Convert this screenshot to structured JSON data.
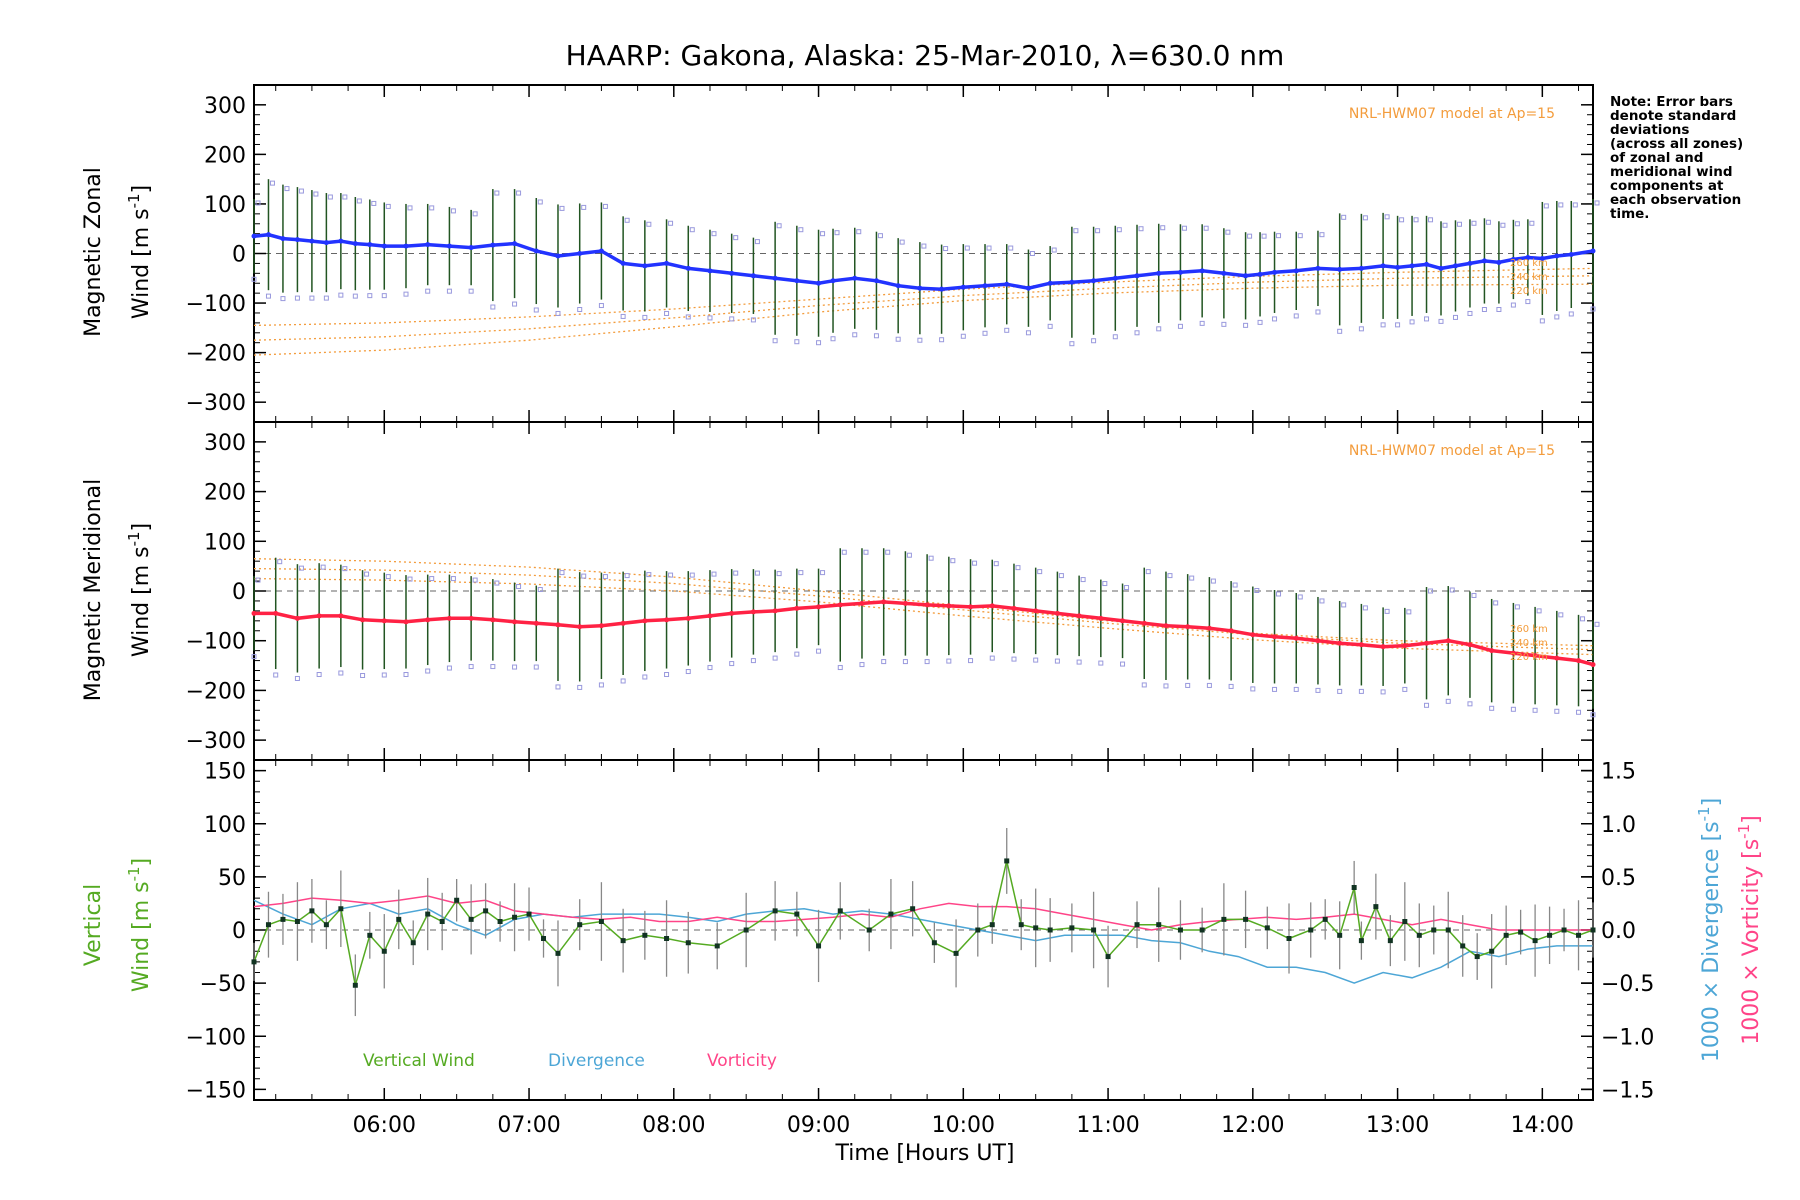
{
  "title": "HAARP: Gakona,  Alaska: 25-Mar-2010, λ=630.0 nm",
  "note_lines": [
    "Note: Error bars",
    "denote standard",
    "deviations",
    "(across all zones)",
    "of zonal and",
    "meridional wind",
    "components at",
    "each observation",
    "time."
  ],
  "xlabel": "Time [Hours UT]",
  "model_label": "NRL-HWM07 model at Ap=15",
  "altitude_labels": [
    "260 km",
    "240 km",
    "220 km"
  ],
  "legend": {
    "vertical": "Vertical Wind",
    "divergence": "Divergence",
    "vorticity": "Vorticity"
  },
  "colors": {
    "zonal": "#2233ff",
    "meridional": "#ff2244",
    "vertical": "#55aa22",
    "divergence": "#4da6d6",
    "vorticity": "#ff4488",
    "model": "#f39c3c",
    "scatter": "#9999dd",
    "errorbar": "#225522"
  },
  "chart_data": [
    {
      "type": "line",
      "panel": "zonal",
      "ylabel_line1": "Magnetic Zonal",
      "ylabel_line2": "Wind [m s",
      "ylabel_sup": "-1",
      "ylabel_close": "]",
      "xlim": [
        5.1,
        14.35
      ],
      "ylim": [
        -340,
        340
      ],
      "yticks": [
        -300,
        -200,
        -100,
        0,
        100,
        200,
        300
      ],
      "xticks": [
        6,
        7,
        8,
        9,
        10,
        11,
        12,
        13,
        14
      ],
      "xtick_labels": [
        "06:00",
        "07:00",
        "08:00",
        "09:00",
        "10:00",
        "11:00",
        "12:00",
        "13:00",
        "14:00"
      ],
      "series": [
        {
          "name": "zonal",
          "x": [
            5.1,
            5.2,
            5.3,
            5.4,
            5.5,
            5.6,
            5.7,
            5.8,
            5.9,
            6.0,
            6.15,
            6.3,
            6.45,
            6.6,
            6.75,
            6.9,
            7.05,
            7.2,
            7.35,
            7.5,
            7.65,
            7.8,
            7.95,
            8.1,
            8.25,
            8.4,
            8.55,
            8.7,
            8.85,
            9.0,
            9.1,
            9.25,
            9.4,
            9.55,
            9.7,
            9.85,
            10.0,
            10.15,
            10.3,
            10.45,
            10.6,
            10.75,
            10.9,
            11.05,
            11.2,
            11.35,
            11.5,
            11.65,
            11.8,
            11.95,
            12.05,
            12.15,
            12.3,
            12.45,
            12.6,
            12.75,
            12.9,
            13.0,
            13.1,
            13.2,
            13.3,
            13.4,
            13.5,
            13.6,
            13.7,
            13.8,
            13.9,
            14.0,
            14.1,
            14.2,
            14.35
          ],
          "values": [
            35,
            38,
            30,
            28,
            25,
            22,
            25,
            20,
            18,
            15,
            15,
            18,
            15,
            12,
            17,
            20,
            5,
            -5,
            0,
            5,
            -20,
            -25,
            -20,
            -30,
            -35,
            -40,
            -45,
            -50,
            -55,
            -60,
            -55,
            -50,
            -55,
            -65,
            -70,
            -72,
            -68,
            -65,
            -62,
            -70,
            -60,
            -58,
            -55,
            -50,
            -45,
            -40,
            -38,
            -35,
            -40,
            -45,
            -42,
            -38,
            -35,
            -30,
            -32,
            -30,
            -25,
            -28,
            -25,
            -22,
            -30,
            -25,
            -20,
            -15,
            -18,
            -12,
            -8,
            -10,
            -5,
            -2,
            5
          ]
        },
        {
          "name": "model 260 km",
          "x": [
            5.1,
            6.0,
            7.0,
            8.0,
            9.0,
            10.0,
            11.0,
            12.0,
            13.0,
            14.35
          ],
          "values": [
            -145,
            -140,
            -128,
            -112,
            -92,
            -72,
            -58,
            -46,
            -38,
            -30
          ]
        },
        {
          "name": "model 240 km",
          "x": [
            5.1,
            6.0,
            7.0,
            8.0,
            9.0,
            10.0,
            11.0,
            12.0,
            13.0,
            14.35
          ],
          "values": [
            -175,
            -168,
            -152,
            -130,
            -105,
            -85,
            -70,
            -58,
            -50,
            -45
          ]
        },
        {
          "name": "model 220 km",
          "x": [
            5.1,
            6.0,
            7.0,
            8.0,
            9.0,
            10.0,
            11.0,
            12.0,
            13.0,
            14.35
          ],
          "values": [
            -205,
            -195,
            -175,
            -148,
            -118,
            -95,
            -80,
            -70,
            -64,
            -62
          ]
        }
      ]
    },
    {
      "type": "line",
      "panel": "meridional",
      "ylabel_line1": "Magnetic Meridional",
      "ylabel_line2": "Wind [m s",
      "ylabel_sup": "-1",
      "ylabel_close": "]",
      "xlim": [
        5.1,
        14.35
      ],
      "ylim": [
        -340,
        340
      ],
      "yticks": [
        -300,
        -200,
        -100,
        0,
        100,
        200,
        300
      ],
      "series": [
        {
          "name": "meridional",
          "x": [
            5.1,
            5.25,
            5.4,
            5.55,
            5.7,
            5.85,
            6.0,
            6.15,
            6.3,
            6.45,
            6.6,
            6.75,
            6.9,
            7.05,
            7.2,
            7.35,
            7.5,
            7.65,
            7.8,
            7.95,
            8.1,
            8.25,
            8.4,
            8.55,
            8.7,
            8.85,
            9.0,
            9.15,
            9.3,
            9.45,
            9.6,
            9.75,
            9.9,
            10.05,
            10.2,
            10.35,
            10.5,
            10.65,
            10.8,
            10.95,
            11.1,
            11.25,
            11.4,
            11.55,
            11.7,
            11.85,
            12.0,
            12.15,
            12.3,
            12.45,
            12.6,
            12.75,
            12.9,
            13.05,
            13.2,
            13.35,
            13.5,
            13.65,
            13.8,
            13.95,
            14.1,
            14.25,
            14.35
          ],
          "values": [
            -45,
            -45,
            -55,
            -50,
            -50,
            -58,
            -60,
            -62,
            -58,
            -55,
            -55,
            -58,
            -62,
            -65,
            -68,
            -72,
            -70,
            -65,
            -60,
            -58,
            -55,
            -50,
            -45,
            -42,
            -40,
            -35,
            -32,
            -28,
            -25,
            -22,
            -25,
            -28,
            -30,
            -32,
            -30,
            -35,
            -40,
            -45,
            -50,
            -55,
            -60,
            -65,
            -70,
            -72,
            -75,
            -80,
            -88,
            -92,
            -95,
            -100,
            -105,
            -108,
            -112,
            -110,
            -105,
            -100,
            -108,
            -120,
            -125,
            -130,
            -135,
            -140,
            -148
          ]
        },
        {
          "name": "model 260 km",
          "x": [
            5.1,
            6.0,
            7.0,
            8.0,
            9.0,
            10.0,
            11.0,
            12.0,
            13.0,
            14.35
          ],
          "values": [
            65,
            60,
            48,
            28,
            0,
            -30,
            -60,
            -85,
            -100,
            -110
          ]
        },
        {
          "name": "model 240 km",
          "x": [
            5.1,
            6.0,
            7.0,
            8.0,
            9.0,
            10.0,
            11.0,
            12.0,
            13.0,
            14.35
          ],
          "values": [
            45,
            42,
            32,
            15,
            -10,
            -38,
            -65,
            -88,
            -105,
            -118
          ]
        },
        {
          "name": "model 220 km",
          "x": [
            5.1,
            6.0,
            7.0,
            8.0,
            9.0,
            10.0,
            11.0,
            12.0,
            13.0,
            14.35
          ],
          "values": [
            25,
            22,
            14,
            0,
            -22,
            -50,
            -75,
            -98,
            -115,
            -128
          ]
        }
      ]
    },
    {
      "type": "line",
      "panel": "vertical",
      "ylabel_green_1": "Vertical",
      "ylabel_green_2": "Wind [m s",
      "ylabel_sup": "-1",
      "ylabel_close": "]",
      "ylabel_right_div": "1000 × Divergence [s",
      "ylabel_right_vor": "1000 × Vorticity [s",
      "xlim": [
        5.1,
        14.35
      ],
      "ylim": [
        -160,
        160
      ],
      "yticks": [
        -150,
        -100,
        -50,
        0,
        50,
        100,
        150
      ],
      "y2lim": [
        -1.6,
        1.6
      ],
      "y2ticks": [
        -1.5,
        -1.0,
        -0.5,
        0.0,
        0.5,
        1.0,
        1.5
      ],
      "y2tick_labels": [
        "−1.5",
        "−1.0",
        "−0.5",
        "0.0",
        "0.5",
        "1.0",
        "1.5"
      ],
      "series": [
        {
          "name": "Vertical Wind",
          "x": [
            5.1,
            5.2,
            5.3,
            5.4,
            5.5,
            5.6,
            5.7,
            5.8,
            5.9,
            6.0,
            6.1,
            6.2,
            6.3,
            6.4,
            6.5,
            6.6,
            6.7,
            6.8,
            6.9,
            7.0,
            7.1,
            7.2,
            7.35,
            7.5,
            7.65,
            7.8,
            7.95,
            8.1,
            8.3,
            8.5,
            8.7,
            8.85,
            9.0,
            9.15,
            9.35,
            9.5,
            9.65,
            9.8,
            9.95,
            10.1,
            10.2,
            10.3,
            10.4,
            10.5,
            10.6,
            10.75,
            10.9,
            11.0,
            11.2,
            11.35,
            11.5,
            11.65,
            11.8,
            11.95,
            12.1,
            12.25,
            12.4,
            12.5,
            12.6,
            12.7,
            12.75,
            12.85,
            12.95,
            13.05,
            13.15,
            13.25,
            13.35,
            13.45,
            13.55,
            13.65,
            13.75,
            13.85,
            13.95,
            14.05,
            14.15,
            14.25,
            14.35
          ],
          "values": [
            -30,
            5,
            10,
            8,
            18,
            5,
            20,
            -52,
            -5,
            -20,
            10,
            -12,
            15,
            8,
            28,
            10,
            18,
            8,
            12,
            15,
            -8,
            -22,
            5,
            8,
            -10,
            -5,
            -8,
            -12,
            -15,
            0,
            18,
            15,
            -15,
            18,
            0,
            15,
            20,
            -12,
            -22,
            0,
            5,
            65,
            5,
            2,
            0,
            2,
            0,
            -25,
            5,
            5,
            0,
            0,
            10,
            10,
            2,
            -8,
            0,
            10,
            -5,
            40,
            -10,
            22,
            -10,
            8,
            -5,
            0,
            0,
            -15,
            -25,
            -20,
            -5,
            -2,
            -10,
            -5,
            0,
            -5,
            0
          ]
        },
        {
          "name": "Divergence",
          "x": [
            5.1,
            5.3,
            5.5,
            5.7,
            5.9,
            6.1,
            6.3,
            6.5,
            6.7,
            6.9,
            7.1,
            7.3,
            7.5,
            7.7,
            7.9,
            8.1,
            8.3,
            8.5,
            8.7,
            8.9,
            9.1,
            9.3,
            9.5,
            9.7,
            9.9,
            10.1,
            10.3,
            10.5,
            10.7,
            10.9,
            11.1,
            11.3,
            11.5,
            11.7,
            11.9,
            12.1,
            12.3,
            12.5,
            12.7,
            12.9,
            13.1,
            13.3,
            13.5,
            13.7,
            13.9,
            14.1,
            14.35
          ],
          "values": [
            0.28,
            0.15,
            0.05,
            0.2,
            0.25,
            0.15,
            0.2,
            0.05,
            -0.05,
            0.1,
            0.15,
            0.12,
            0.15,
            0.15,
            0.15,
            0.12,
            0.08,
            0.15,
            0.18,
            0.2,
            0.15,
            0.18,
            0.15,
            0.1,
            0.05,
            0.0,
            -0.05,
            -0.1,
            -0.05,
            -0.05,
            -0.05,
            -0.1,
            -0.12,
            -0.2,
            -0.25,
            -0.35,
            -0.35,
            -0.4,
            -0.5,
            -0.4,
            -0.45,
            -0.35,
            -0.2,
            -0.25,
            -0.18,
            -0.15,
            -0.15
          ]
        },
        {
          "name": "Vorticity",
          "x": [
            5.1,
            5.3,
            5.5,
            5.7,
            5.9,
            6.1,
            6.3,
            6.5,
            6.7,
            6.9,
            7.1,
            7.3,
            7.5,
            7.7,
            7.9,
            8.1,
            8.3,
            8.5,
            8.7,
            8.9,
            9.1,
            9.3,
            9.5,
            9.7,
            9.9,
            10.1,
            10.3,
            10.5,
            10.7,
            10.9,
            11.1,
            11.3,
            11.5,
            11.7,
            11.9,
            12.1,
            12.3,
            12.5,
            12.7,
            12.9,
            13.1,
            13.3,
            13.5,
            13.7,
            13.9,
            14.1,
            14.35
          ],
          "values": [
            0.22,
            0.25,
            0.3,
            0.28,
            0.25,
            0.28,
            0.32,
            0.25,
            0.28,
            0.18,
            0.15,
            0.12,
            0.1,
            0.12,
            0.08,
            0.08,
            0.12,
            0.08,
            0.08,
            0.1,
            0.12,
            0.15,
            0.12,
            0.2,
            0.25,
            0.22,
            0.22,
            0.2,
            0.15,
            0.1,
            0.05,
            0.0,
            0.05,
            0.08,
            0.1,
            0.12,
            0.1,
            0.12,
            0.15,
            0.1,
            0.05,
            0.1,
            0.05,
            0.0,
            0.0,
            0.0,
            0.0
          ]
        }
      ]
    }
  ]
}
